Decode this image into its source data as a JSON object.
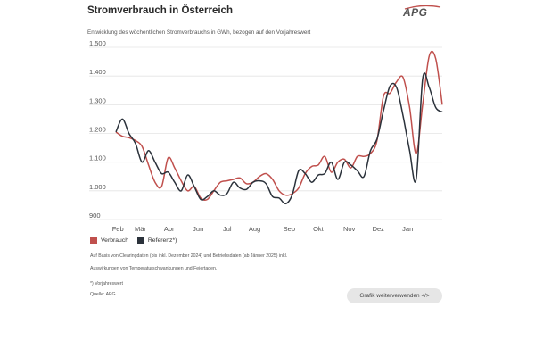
{
  "header": {
    "title": "Stromverbrauch in Österreich",
    "subtitle": "Entwicklung des wöchentlichen Stromverbrauchs in GWh, bezogen auf den Vorjahreswert",
    "logo_text": "APG"
  },
  "colors": {
    "verbrauch": "#c0504d",
    "referenz": "#2b323b",
    "grid": "#e4e4e4",
    "button_bg": "#e6e6e6"
  },
  "chart_data": {
    "type": "line",
    "title": "Stromverbrauch in Österreich",
    "ylabel": "GWh",
    "ylim": [
      900,
      1500
    ],
    "yticks": [
      "1.500",
      "1.400",
      "1.300",
      "1.200",
      "1.100",
      "1.000",
      "900"
    ],
    "ytick_values": [
      1500,
      1400,
      1300,
      1200,
      1100,
      1000,
      900
    ],
    "xlim": [
      0,
      50
    ],
    "xticks": [
      "Feb",
      "Mär",
      "Apr",
      "Jun",
      "Jul",
      "Aug",
      "Sep",
      "Okt",
      "Nov",
      "Dez",
      "Jan"
    ],
    "xtick_positions": [
      0.6,
      7.5,
      16.3,
      25.2,
      34.1,
      42.5,
      53.1,
      62.0,
      71.5,
      80.4,
      89.4
    ],
    "xtick_scale": 0.5,
    "series": [
      {
        "name": "Verbrauch",
        "values": [
          1205,
          1190,
          1185,
          1175,
          1155,
          1090,
          1030,
          1015,
          1115,
          1080,
          1035,
          1000,
          1015,
          975,
          970,
          1000,
          1030,
          1035,
          1040,
          1045,
          1025,
          1030,
          1050,
          1060,
          1040,
          1000,
          985,
          990,
          1010,
          1060,
          1085,
          1090,
          1120,
          1065,
          1100,
          1110,
          1080,
          1120,
          1120,
          1130,
          1175,
          1330,
          1340,
          1380,
          1395,
          1290,
          1130,
          1300,
          1470,
          1460,
          1300
        ]
      },
      {
        "name": "Referenz*)",
        "values": [
          1205,
          1250,
          1200,
          1165,
          1100,
          1140,
          1100,
          1060,
          1065,
          1030,
          1000,
          1055,
          1015,
          970,
          980,
          1000,
          985,
          990,
          1030,
          1010,
          1005,
          1030,
          1035,
          1025,
          980,
          975,
          955,
          985,
          1070,
          1060,
          1030,
          1055,
          1060,
          1100,
          1040,
          1100,
          1090,
          1070,
          1050,
          1140,
          1180,
          1280,
          1365,
          1360,
          1260,
          1140,
          1040,
          1390,
          1360,
          1290,
          1275
        ]
      }
    ],
    "legend_position": "bottom-left",
    "grid": true
  },
  "legend": {
    "verbrauch": "Verbrauch",
    "referenz": "Referenz*)"
  },
  "notes": {
    "line1": "Auf Basis von Clearingdaten (bis inkl. Dezember 2024) und Betriebsdaten (ab Jänner 2025) inkl.",
    "line2": "Auswirkungen von Temperaturschwankungen und Feiertagen.",
    "footnote": "*) Vorjahreswert",
    "source": "Quelle: APG"
  },
  "cta": {
    "label": "Grafik weiterverwenden </>"
  }
}
